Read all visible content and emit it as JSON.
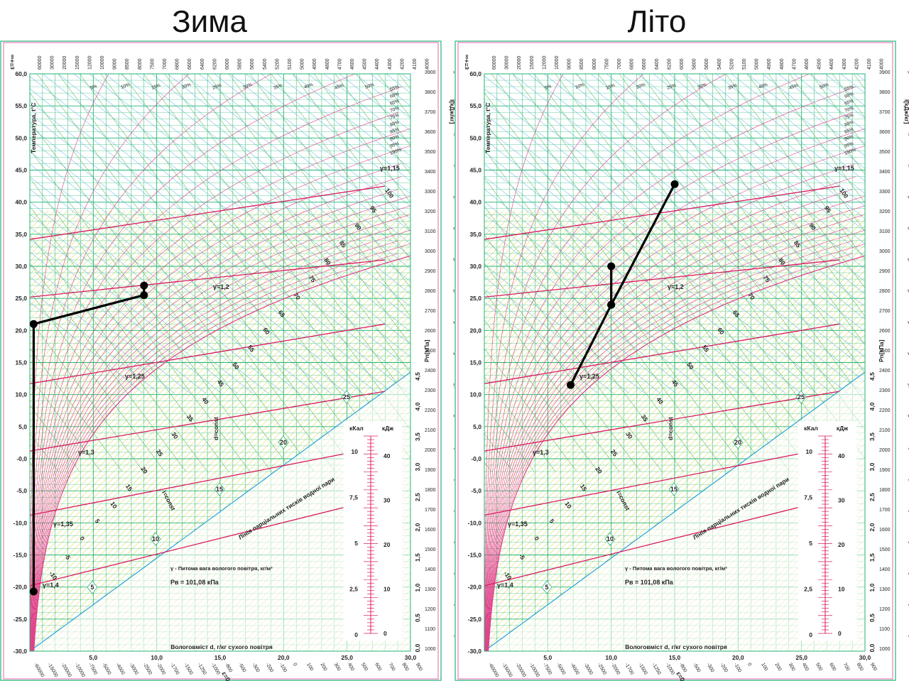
{
  "titles": {
    "left": "Зима",
    "right": "Літо"
  },
  "axis": {
    "temperature_label": "Температура, t°C",
    "moisture_label": "Вологовміст d, г/кг сухого повітря",
    "enthalpy_label": "I[кДж/кг]",
    "pressure_label": "Pn[кПа]",
    "partial_pressure_line_label": "Лінія парціальних тисків водної пари",
    "d_const": "d=const",
    "i_const": "i=const",
    "epsilon_top": "ε=+∞",
    "epsilon_bottom": "ε=0",
    "t_ticks": [
      "60,0",
      "55,0",
      "50,0",
      "45,0",
      "40,0",
      "35,0",
      "30,0",
      "25,0",
      "20,0",
      "15,0",
      "10,0",
      "5,0",
      "-0,0",
      "-5,0",
      "-10,0",
      "-15,0",
      "-20,0",
      "-25,0",
      "-30,0"
    ],
    "d_ticks": [
      "5,0",
      "10,0",
      "15,0",
      "20,0",
      "25,0",
      "30,0"
    ],
    "pn_ticks": [
      "4,5",
      "4,0",
      "3,5",
      "3,0",
      "2,5",
      "2,0",
      "1,5",
      "1,0",
      "0,5",
      "0,0"
    ],
    "i_diag_labels": [
      "100",
      "95",
      "90",
      "85",
      "80",
      "75",
      "70",
      "65",
      "60",
      "55",
      "50",
      "45",
      "40",
      "35",
      "30",
      "25",
      "20",
      "15",
      "10",
      "5",
      "0",
      "-5",
      "-10"
    ],
    "enthalpy_scale": [
      "55,0",
      "50,0",
      "45,0",
      "40,0",
      "35,0",
      "30,0",
      "25,0",
      "20,0",
      "15,0",
      "10,0",
      "5,0",
      "0",
      "-5",
      "-10",
      "-15",
      "-20",
      "-25",
      "-30",
      "-35",
      "-40"
    ],
    "rh_labels": [
      "5%",
      "10%",
      "15%",
      "20%",
      "25%",
      "30%",
      "35%",
      "40%",
      "45%",
      "50%",
      "55%",
      "60%",
      "65%",
      "70%",
      "75%",
      "80%",
      "85%",
      "90%",
      "95%",
      "100%"
    ],
    "gamma_labels": [
      "γ=1,15",
      "γ=1,2",
      "γ=1,25",
      "γ=1,3",
      "γ=1,35",
      "γ=1,4"
    ],
    "diamond_labels": [
      "25",
      "20",
      "15",
      "10",
      "5"
    ],
    "eps_top_scale": [
      "60000",
      "30000",
      "20000",
      "15000",
      "12000",
      "10000",
      "9000",
      "8500",
      "8000",
      "7500",
      "7000",
      "6800",
      "6600",
      "6400",
      "6200",
      "6000",
      "5800",
      "5600",
      "5400",
      "5200",
      "5100",
      "5000",
      "4900",
      "4800",
      "4700",
      "4600",
      "4500",
      "4400",
      "4300",
      "4200",
      "4100",
      "4000"
    ],
    "eps_right_scale": [
      "3900",
      "3800",
      "3700",
      "3600",
      "3500",
      "3400",
      "3300",
      "3200",
      "3100",
      "3000",
      "2900",
      "2800",
      "2700",
      "2600",
      "2500",
      "2400",
      "2300",
      "2200",
      "2100",
      "2000",
      "1900",
      "1800",
      "1700",
      "1600",
      "1500",
      "1400",
      "1300",
      "1200",
      "1100",
      "1000"
    ],
    "eps_bottom_scale": [
      "-60000",
      "-15000",
      "-20000",
      "-10000",
      "-7500",
      "-5000",
      "-4000",
      "-3000",
      "-2500",
      "-2000",
      "-1700",
      "-1500",
      "-1250",
      "-1000",
      "-800",
      "-500",
      "-300",
      "-200",
      "-100",
      "0",
      "100",
      "200",
      "300",
      "400",
      "500",
      "600",
      "700",
      "800",
      "900"
    ]
  },
  "scale_box": {
    "left_header": "кКал",
    "right_header": "кДж",
    "kcal": [
      "10",
      "7,5",
      "5",
      "2,5",
      "0"
    ],
    "kj": [
      "40",
      "30",
      "20",
      "10",
      "0"
    ]
  },
  "legend": {
    "gamma_note": "γ - Питома вага вологого повітря, кг/м³",
    "pressure_note": "Pв = 101,08 кПа"
  },
  "colors": {
    "process": "#000000",
    "rh_lines": "#e0408a",
    "green_grid": "#22b573",
    "yellow_hatch": "#c8c800",
    "cyan": "#29a3d6",
    "gamma": "#d81b60",
    "magenta_frame": "#e040a0"
  },
  "chart_data": [
    {
      "type": "line",
      "title": "Зима",
      "xlabel": "Вологовміст d, г/кг сухого повітря",
      "ylabel": "Температура, t°C",
      "xlim": [
        0,
        30
      ],
      "ylim": [
        -30,
        60
      ],
      "series": [
        {
          "values": [
            {
              "x": 9.0,
              "y": 27.0
            },
            {
              "x": 9.0,
              "y": 25.5
            },
            {
              "x": 0.3,
              "y": 21.0
            },
            {
              "x": 0.3,
              "y": -20.7
            }
          ]
        }
      ]
    },
    {
      "type": "line",
      "title": "Літо",
      "xlabel": "Вологовміст d, г/кг сухого повітря",
      "ylabel": "Температура, t°C",
      "xlim": [
        0,
        30
      ],
      "ylim": [
        -30,
        60
      ],
      "series": [
        {
          "values": [
            {
              "x": 10.0,
              "y": 30.0
            },
            {
              "x": 10.0,
              "y": 24.0
            },
            {
              "x": 15.0,
              "y": 42.8
            }
          ]
        },
        {
          "values": [
            {
              "x": 10.0,
              "y": 24.0
            },
            {
              "x": 6.8,
              "y": 11.5
            }
          ]
        }
      ]
    }
  ]
}
